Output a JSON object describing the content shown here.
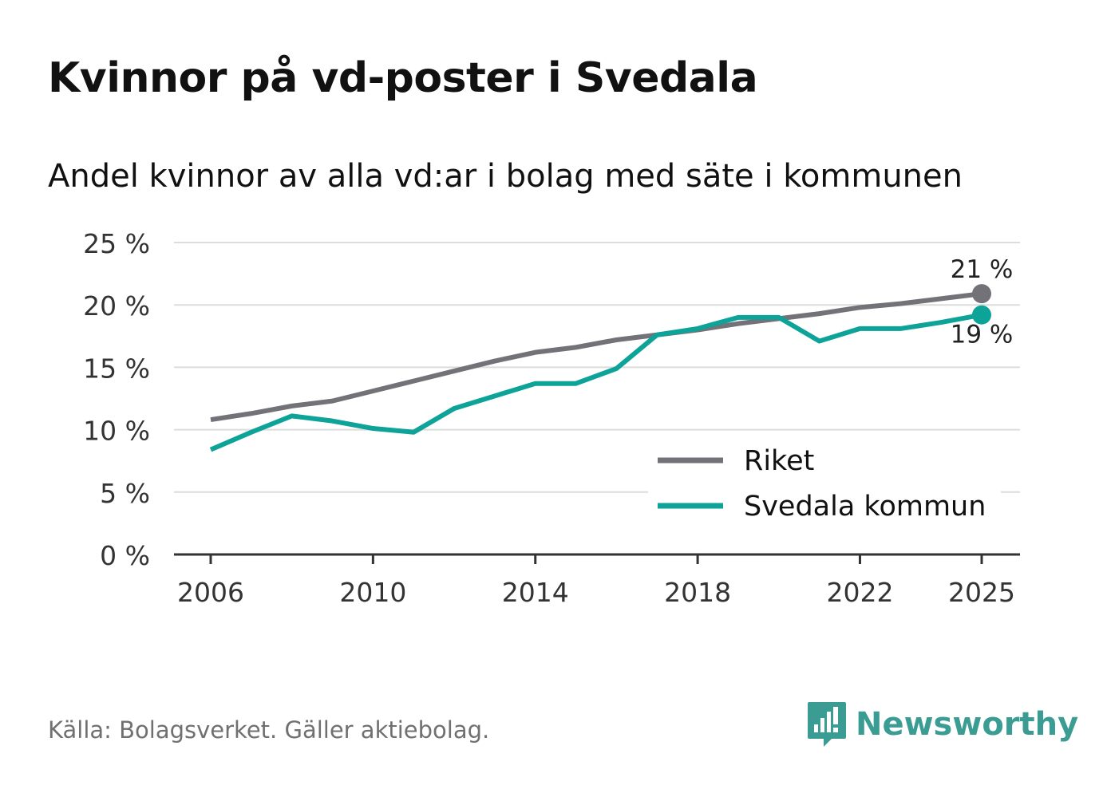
{
  "title": "Kvinnor på vd-poster i Svedala",
  "subtitle": "Andel kvinnor av alla vd:ar i bolag med säte i kommunen",
  "source": "Källa: Bolagsverket. Gäller aktiebolag.",
  "brand": "Newsworthy",
  "colors": {
    "riket": "#737278",
    "svedala": "#0ea398",
    "grid": "#dcdcdc",
    "axis": "#333333",
    "brand": "#3a9c93"
  },
  "chart_data": {
    "type": "line",
    "title": "Kvinnor på vd-poster i Svedala",
    "subtitle": "Andel kvinnor av alla vd:ar i bolag med säte i kommunen",
    "x": [
      2006,
      2007,
      2008,
      2009,
      2010,
      2011,
      2012,
      2013,
      2014,
      2015,
      2016,
      2017,
      2018,
      2019,
      2020,
      2021,
      2022,
      2023,
      2024,
      2025
    ],
    "x_ticks": [
      2006,
      2010,
      2014,
      2018,
      2022,
      2025
    ],
    "x_tick_labels": [
      "2006",
      "2010",
      "2014",
      "2018",
      "2022",
      "2025"
    ],
    "y_ticks": [
      0,
      5,
      10,
      15,
      20,
      25
    ],
    "y_tick_labels": [
      "0 %",
      "5 %",
      "10 %",
      "15 %",
      "20 %",
      "25 %"
    ],
    "ylim": [
      0,
      25
    ],
    "grid": true,
    "legend_position": "bottom-right",
    "series": [
      {
        "name": "Riket",
        "color": "#737278",
        "values": [
          10.8,
          11.3,
          11.9,
          12.3,
          13.1,
          13.9,
          14.7,
          15.5,
          16.2,
          16.6,
          17.2,
          17.6,
          18.0,
          18.5,
          18.9,
          19.3,
          19.8,
          20.1,
          20.5,
          20.9
        ],
        "end_label": "21 %"
      },
      {
        "name": "Svedala kommun",
        "color": "#0ea398",
        "values": [
          8.4,
          9.8,
          11.1,
          10.7,
          10.1,
          9.8,
          11.7,
          12.7,
          13.7,
          13.7,
          14.9,
          17.6,
          18.1,
          19.0,
          19.0,
          17.1,
          18.1,
          18.1,
          18.6,
          19.2
        ],
        "end_label": "19 %"
      }
    ]
  }
}
